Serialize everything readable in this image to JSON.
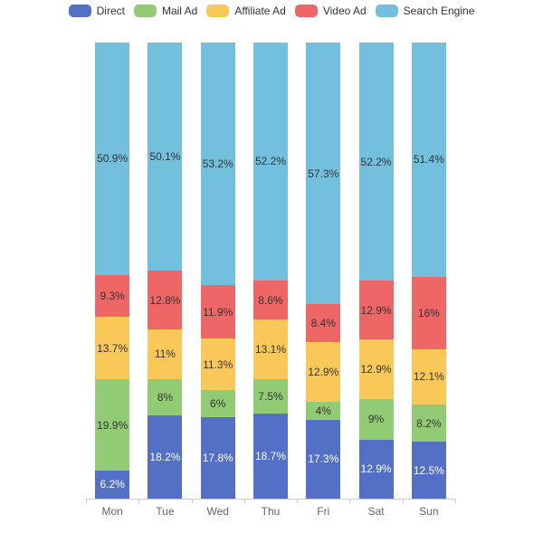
{
  "chart_data": {
    "type": "bar",
    "stacked": true,
    "normalized_percent": true,
    "title": "",
    "xlabel": "",
    "ylabel": "",
    "ylim": [
      0,
      100
    ],
    "grid": false,
    "legend_position": "top",
    "axis_color": "#cccccc",
    "tick_label_color": "#666666",
    "legend_text_color": "#333333",
    "background_color": "#ffffff",
    "categories": [
      "Mon",
      "Tue",
      "Wed",
      "Thu",
      "Fri",
      "Sat",
      "Sun"
    ],
    "series": [
      {
        "name": "Direct",
        "color": "#5470c6",
        "label_color": "#ffffff",
        "values": [
          6.2,
          18.2,
          17.8,
          18.7,
          17.3,
          12.9,
          12.5
        ],
        "labels": [
          "6.2%",
          "18.2%",
          "17.8%",
          "18.7%",
          "17.3%",
          "12.9%",
          "12.5%"
        ]
      },
      {
        "name": "Mail Ad",
        "color": "#91cc75",
        "label_color": "#333333",
        "values": [
          19.9,
          8,
          6,
          7.5,
          4,
          9,
          8.2
        ],
        "labels": [
          "19.9%",
          "8%",
          "6%",
          "7.5%",
          "4%",
          "9%",
          "8.2%"
        ]
      },
      {
        "name": "Affiliate Ad",
        "color": "#fac858",
        "label_color": "#333333",
        "values": [
          13.7,
          11,
          11.3,
          13.1,
          12.9,
          12.9,
          12.1
        ],
        "labels": [
          "13.7%",
          "11%",
          "11.3%",
          "13.1%",
          "12.9%",
          "12.9%",
          "12.1%"
        ]
      },
      {
        "name": "Video Ad",
        "color": "#ee6666",
        "label_color": "#333333",
        "values": [
          9.3,
          12.8,
          11.9,
          8.6,
          8.4,
          12.9,
          16
        ],
        "labels": [
          "9.3%",
          "12.8%",
          "11.9%",
          "8.6%",
          "8.4%",
          "12.9%",
          "16%"
        ]
      },
      {
        "name": "Search Engine",
        "color": "#73c0de",
        "label_color": "#333333",
        "values": [
          50.9,
          50.1,
          53.2,
          52.2,
          57.3,
          52.2,
          51.4
        ],
        "labels": [
          "50.9%",
          "50.1%",
          "53.2%",
          "52.2%",
          "57.3%",
          "52.2%",
          "51.4%"
        ]
      }
    ]
  }
}
